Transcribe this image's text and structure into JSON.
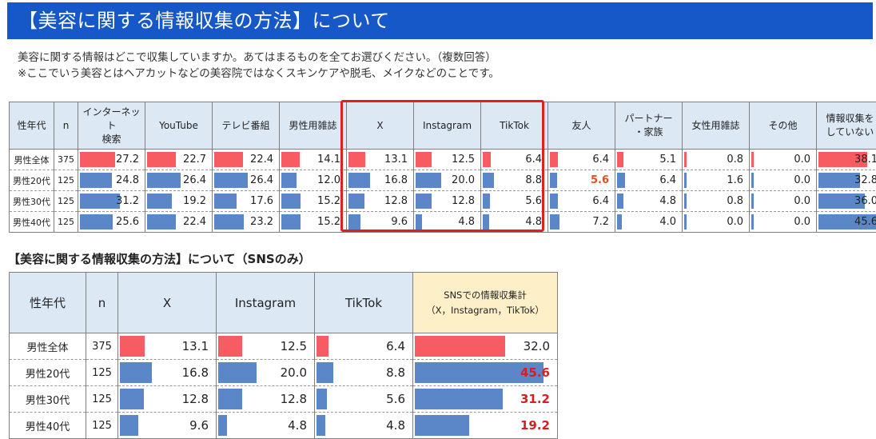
{
  "banner": {
    "title": "【美容に関する情報収集の方法】について"
  },
  "question": {
    "line1": "美容に関する情報はどこで収集していますか。あてはまるものを全てお選びください。（複数回答）",
    "line2": "※ここでいう美容とはヘアカットなどの美容院ではなくスキンケアや脱毛、メイクなどのことです。"
  },
  "colors": {
    "red": "#f75c63",
    "blue": "#5b87c8",
    "header_bg": "#dde8f5",
    "total_bg": "#fdf0c8",
    "highlight_box": "#e02020"
  },
  "table1": {
    "headers": [
      "性年代",
      "n",
      "インターネット\n検索",
      "YouTube",
      "テレビ番組",
      "男性用雑誌",
      "X",
      "Instagram",
      "TikTok",
      "友人",
      "パートナー\n・家族",
      "女性用雑誌",
      "その他",
      "情報収集を\nしていない"
    ],
    "max": 50,
    "highlight": {
      "row": 1,
      "col": 7
    },
    "rows": [
      {
        "label": "男性全体",
        "n": "375",
        "values": [
          27.2,
          22.7,
          22.4,
          14.1,
          13.1,
          12.5,
          6.4,
          6.4,
          5.1,
          0.8,
          0.0,
          38.1
        ],
        "display": [
          "27.2",
          "22.7",
          "22.4",
          "14.1",
          "13.1",
          "12.5",
          "6.4",
          "6.4",
          "5.1",
          "0.8",
          "0.0",
          "38.1"
        ],
        "bar_color": "red"
      },
      {
        "label": "男性20代",
        "n": "125",
        "values": [
          24.8,
          26.4,
          26.4,
          12.0,
          16.8,
          20.0,
          8.8,
          5.6,
          6.4,
          1.6,
          0.0,
          32.8
        ],
        "display": [
          "24.8",
          "26.4",
          "26.4",
          "12.0",
          "16.8",
          "20.0",
          "8.8",
          "5.6",
          "6.4",
          "1.6",
          "0.0",
          "32.8"
        ],
        "bar_color": "blue"
      },
      {
        "label": "男性30代",
        "n": "125",
        "values": [
          31.2,
          19.2,
          17.6,
          15.2,
          12.8,
          12.8,
          5.6,
          6.4,
          4.8,
          0.8,
          0.0,
          36.0
        ],
        "display": [
          "31.2",
          "19.2",
          "17.6",
          "15.2",
          "12.8",
          "12.8",
          "5.6",
          "6.4",
          "4.8",
          "0.8",
          "0.0",
          "36.0"
        ],
        "bar_color": "blue"
      },
      {
        "label": "男性40代",
        "n": "125",
        "values": [
          25.6,
          22.4,
          23.2,
          15.2,
          9.6,
          4.8,
          4.8,
          7.2,
          4.0,
          0.0,
          0.0,
          45.6
        ],
        "display": [
          "25.6",
          "22.4",
          "23.2",
          "15.2",
          "9.6",
          "4.8",
          "4.8",
          "7.2",
          "4.0",
          "0.0",
          "0.0",
          "45.6"
        ],
        "bar_color": "blue"
      }
    ]
  },
  "subtitle": "【美容に関する情報収集の方法】について（SNSのみ）",
  "table2": {
    "headers": [
      "性年代",
      "n",
      "X",
      "Instagram",
      "TikTok",
      "SNSでの情報収集計\n（X，Instagram，TikTok）"
    ],
    "max": 50,
    "rows": [
      {
        "label": "男性全体",
        "n": "375",
        "values": [
          13.1,
          12.5,
          6.4,
          32.0
        ],
        "display": [
          "13.1",
          "12.5",
          "6.4",
          "32.0"
        ],
        "bar_color": "red",
        "total_emphasis": false
      },
      {
        "label": "男性20代",
        "n": "125",
        "values": [
          16.8,
          20.0,
          8.8,
          45.6
        ],
        "display": [
          "16.8",
          "20.0",
          "8.8",
          "45.6"
        ],
        "bar_color": "blue",
        "total_emphasis": true
      },
      {
        "label": "男性30代",
        "n": "125",
        "values": [
          12.8,
          12.8,
          5.6,
          31.2
        ],
        "display": [
          "12.8",
          "12.8",
          "5.6",
          "31.2"
        ],
        "bar_color": "blue",
        "total_emphasis": true
      },
      {
        "label": "男性40代",
        "n": "125",
        "values": [
          9.6,
          4.8,
          4.8,
          19.2
        ],
        "display": [
          "9.6",
          "4.8",
          "4.8",
          "19.2"
        ],
        "bar_color": "blue",
        "total_emphasis": true
      }
    ]
  }
}
